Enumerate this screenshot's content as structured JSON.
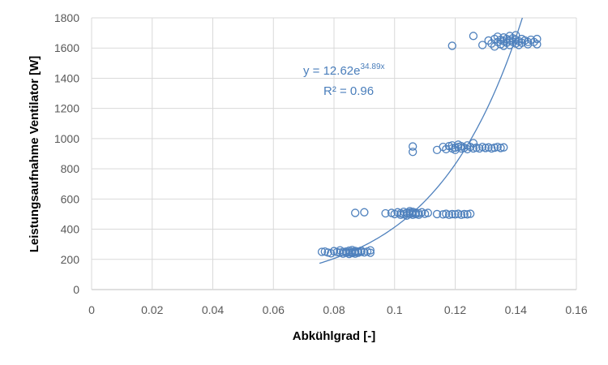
{
  "chart_data": {
    "type": "scatter",
    "xlabel": "Abkühlgrad [-]",
    "ylabel": "Leistungsaufnahme Ventilator [W]",
    "xlim": [
      0,
      0.16
    ],
    "ylim": [
      0,
      1800
    ],
    "x_ticks": [
      "0",
      "0.02",
      "0.04",
      "0.06",
      "0.08",
      "0.1",
      "0.12",
      "0.14",
      "0.16"
    ],
    "y_ticks": [
      "0",
      "200",
      "400",
      "600",
      "800",
      "1000",
      "1200",
      "1400",
      "1600",
      "1800"
    ],
    "grid": true,
    "legend": "none",
    "marker_color": "#4f81bd",
    "trendline": {
      "type": "exponential",
      "a": 12.62,
      "b": 34.89,
      "equation_base": "y = 12.62e",
      "equation_exp": "34.89x",
      "r2_label": "R² = 0.96"
    },
    "series": [
      {
        "points": [
          [
            0.076,
            250
          ],
          [
            0.077,
            252
          ],
          [
            0.078,
            245
          ],
          [
            0.079,
            240
          ],
          [
            0.08,
            255
          ],
          [
            0.081,
            248
          ],
          [
            0.082,
            245
          ],
          [
            0.082,
            260
          ],
          [
            0.083,
            250
          ],
          [
            0.083,
            238
          ],
          [
            0.084,
            252
          ],
          [
            0.084,
            244
          ],
          [
            0.085,
            258
          ],
          [
            0.085,
            246
          ],
          [
            0.085,
            236
          ],
          [
            0.086,
            250
          ],
          [
            0.086,
            262
          ],
          [
            0.086,
            242
          ],
          [
            0.087,
            248
          ],
          [
            0.087,
            256
          ],
          [
            0.087,
            238
          ],
          [
            0.088,
            252
          ],
          [
            0.088,
            244
          ],
          [
            0.089,
            250
          ],
          [
            0.089,
            258
          ],
          [
            0.09,
            246
          ],
          [
            0.091,
            252
          ],
          [
            0.092,
            260
          ],
          [
            0.092,
            244
          ],
          [
            0.087,
            508
          ],
          [
            0.09,
            512
          ],
          [
            0.097,
            505
          ],
          [
            0.099,
            508
          ],
          [
            0.1,
            500
          ],
          [
            0.101,
            512
          ],
          [
            0.102,
            505
          ],
          [
            0.102,
            495
          ],
          [
            0.103,
            515
          ],
          [
            0.103,
            500
          ],
          [
            0.104,
            508
          ],
          [
            0.104,
            490
          ],
          [
            0.105,
            510
          ],
          [
            0.105,
            500
          ],
          [
            0.105,
            520
          ],
          [
            0.106,
            505
          ],
          [
            0.106,
            495
          ],
          [
            0.106,
            515
          ],
          [
            0.107,
            500
          ],
          [
            0.107,
            510
          ],
          [
            0.108,
            505
          ],
          [
            0.108,
            495
          ],
          [
            0.109,
            512
          ],
          [
            0.11,
            502
          ],
          [
            0.111,
            508
          ],
          [
            0.114,
            500
          ],
          [
            0.116,
            498
          ],
          [
            0.117,
            502
          ],
          [
            0.118,
            495
          ],
          [
            0.119,
            500
          ],
          [
            0.12,
            498
          ],
          [
            0.121,
            502
          ],
          [
            0.122,
            495
          ],
          [
            0.123,
            500
          ],
          [
            0.124,
            498
          ],
          [
            0.125,
            502
          ],
          [
            0.106,
            948
          ],
          [
            0.106,
            912
          ],
          [
            0.114,
            925
          ],
          [
            0.116,
            945
          ],
          [
            0.117,
            930
          ],
          [
            0.118,
            950
          ],
          [
            0.119,
            935
          ],
          [
            0.119,
            955
          ],
          [
            0.12,
            940
          ],
          [
            0.12,
            925
          ],
          [
            0.121,
            960
          ],
          [
            0.121,
            945
          ],
          [
            0.122,
            935
          ],
          [
            0.122,
            950
          ],
          [
            0.123,
            940
          ],
          [
            0.124,
            955
          ],
          [
            0.124,
            930
          ],
          [
            0.125,
            945
          ],
          [
            0.126,
            935
          ],
          [
            0.126,
            970
          ],
          [
            0.127,
            940
          ],
          [
            0.128,
            935
          ],
          [
            0.129,
            945
          ],
          [
            0.13,
            938
          ],
          [
            0.131,
            942
          ],
          [
            0.132,
            935
          ],
          [
            0.133,
            940
          ],
          [
            0.134,
            945
          ],
          [
            0.135,
            938
          ],
          [
            0.136,
            942
          ],
          [
            0.119,
            1615
          ],
          [
            0.126,
            1680
          ],
          [
            0.129,
            1620
          ],
          [
            0.131,
            1650
          ],
          [
            0.132,
            1630
          ],
          [
            0.133,
            1660
          ],
          [
            0.133,
            1610
          ],
          [
            0.134,
            1640
          ],
          [
            0.134,
            1675
          ],
          [
            0.135,
            1625
          ],
          [
            0.135,
            1655
          ],
          [
            0.136,
            1645
          ],
          [
            0.136,
            1615
          ],
          [
            0.136,
            1670
          ],
          [
            0.137,
            1635
          ],
          [
            0.137,
            1660
          ],
          [
            0.138,
            1650
          ],
          [
            0.138,
            1620
          ],
          [
            0.138,
            1680
          ],
          [
            0.139,
            1640
          ],
          [
            0.139,
            1665
          ],
          [
            0.14,
            1630
          ],
          [
            0.14,
            1655
          ],
          [
            0.14,
            1685
          ],
          [
            0.141,
            1645
          ],
          [
            0.141,
            1620
          ],
          [
            0.142,
            1660
          ],
          [
            0.142,
            1635
          ],
          [
            0.143,
            1650
          ],
          [
            0.144,
            1640
          ],
          [
            0.144,
            1625
          ],
          [
            0.145,
            1655
          ],
          [
            0.146,
            1640
          ],
          [
            0.147,
            1660
          ],
          [
            0.147,
            1625
          ]
        ]
      }
    ]
  }
}
